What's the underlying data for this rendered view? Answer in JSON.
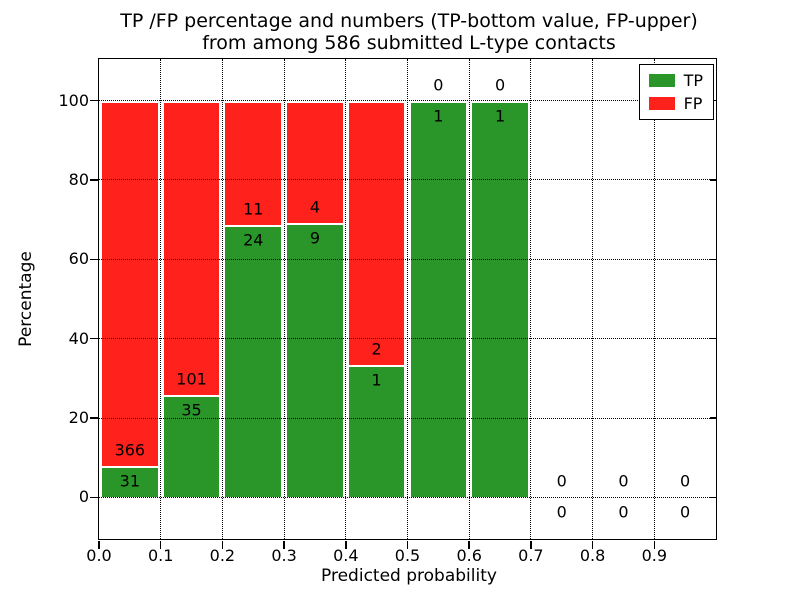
{
  "title": {
    "line1": "TP /FP percentage and numbers (TP-bottom value, FP-upper)",
    "line2": "from among 586 submitted L-type contacts"
  },
  "chart_data": {
    "type": "bar",
    "stacked": true,
    "normalized_to_percent": true,
    "title": "TP /FP percentage and numbers (TP-bottom value, FP-upper)\nfrom among 586 submitted L-type contacts",
    "xlabel": "Predicted probability",
    "ylabel": "Percentage",
    "bins_start": [
      0.0,
      0.1,
      0.2,
      0.3,
      0.4,
      0.5,
      0.6,
      0.7,
      0.8,
      0.9
    ],
    "bin_width": 0.1,
    "series": [
      {
        "name": "TP",
        "color": "#2a962a",
        "values": [
          31,
          35,
          24,
          9,
          1,
          1,
          1,
          0,
          0,
          0
        ]
      },
      {
        "name": "FP",
        "color": "#ff211c",
        "values": [
          366,
          101,
          11,
          4,
          2,
          0,
          0,
          0,
          0,
          0
        ]
      }
    ],
    "tp_percent_per_bin": [
      7.8,
      25.7,
      68.6,
      69.2,
      33.3,
      100,
      100,
      0,
      0,
      0
    ],
    "total_contacts": 586,
    "xlim": [
      0.0,
      1.0
    ],
    "ylim": [
      -10.5,
      110.5
    ],
    "xticks": [
      0.0,
      0.1,
      0.2,
      0.3,
      0.4,
      0.5,
      0.6,
      0.7,
      0.8,
      0.9
    ],
    "xtick_labels": [
      "0.0",
      "0.1",
      "0.2",
      "0.3",
      "0.4",
      "0.5",
      "0.6",
      "0.7",
      "0.8",
      "0.9"
    ],
    "yticks": [
      0,
      20,
      40,
      60,
      80,
      100
    ],
    "ytick_labels": [
      "0",
      "20",
      "40",
      "60",
      "80",
      "100"
    ],
    "grid": "dotted",
    "legend": {
      "position": "upper right",
      "entries": [
        {
          "label": "TP",
          "color": "#2a962a"
        },
        {
          "label": "FP",
          "color": "#ff211c"
        }
      ]
    }
  }
}
